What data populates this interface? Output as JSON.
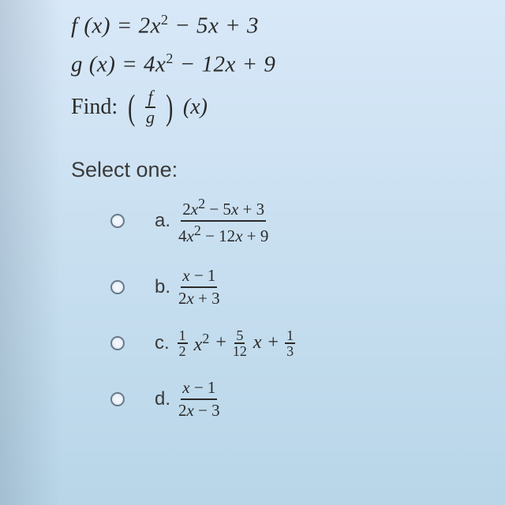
{
  "equations": {
    "f": "f (x) = 2x² − 5x + 3",
    "g": "g (x) = 4x² − 12x + 9",
    "find_label": "Find:",
    "frac_top": "f",
    "frac_bot": "g",
    "arg": "(x)"
  },
  "prompt": "Select one:",
  "options": {
    "a": {
      "letter": "a.",
      "num": "2x² − 5x + 3",
      "den": "4x² − 12x + 9"
    },
    "b": {
      "letter": "b.",
      "num": "x − 1",
      "den": "2x + 3"
    },
    "c": {
      "letter": "c.",
      "f1n": "1",
      "f1d": "2",
      "f2n": "5",
      "f2d": "12",
      "f3n": "1",
      "f3d": "3"
    },
    "d": {
      "letter": "d.",
      "num": "x − 1",
      "den": "2x − 3"
    }
  },
  "style": {
    "bg_top": "#d8e8f8",
    "bg_bot": "#b8d6e8",
    "text_color": "#2a2a2a",
    "radio_border": "#6a7a8a",
    "eq_fontsize": 29,
    "prompt_fontsize": 27,
    "option_fontsize": 24
  }
}
